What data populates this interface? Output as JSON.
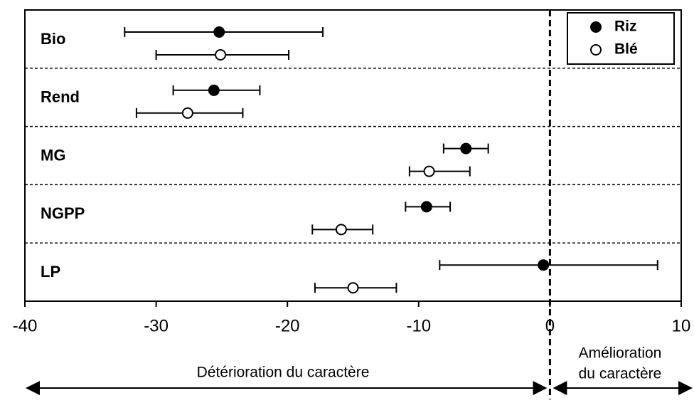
{
  "chart_data": {
    "type": "errorbar",
    "categories": [
      "Bio",
      "Rend",
      "MG",
      "NGPP",
      "LP"
    ],
    "series": [
      {
        "name": "Riz",
        "color": "#000000",
        "filled": true,
        "values": [
          -25.2,
          -25.6,
          -6.4,
          -9.4,
          -0.5
        ],
        "lower": [
          -32.4,
          -28.7,
          -8.1,
          -11.0,
          -8.4
        ],
        "upper": [
          -17.3,
          -22.1,
          -4.7,
          -7.6,
          8.2
        ]
      },
      {
        "name": "Blé",
        "color": "#000000",
        "filled": false,
        "values": [
          -25.1,
          -27.6,
          -9.2,
          -15.9,
          -15.0
        ],
        "lower": [
          -30.0,
          -31.5,
          -10.7,
          -18.1,
          -17.9
        ],
        "upper": [
          -19.9,
          -23.4,
          -6.1,
          -13.5,
          -11.7
        ]
      }
    ],
    "xlim": [
      -40,
      10
    ],
    "xticks": [
      -40,
      -30,
      -20,
      -10,
      0,
      10
    ],
    "reference_line": 0,
    "legend": "upper right",
    "annotations": {
      "left": "Détérioration du caractère",
      "right": [
        "Amélioration",
        "du caractère"
      ]
    }
  }
}
